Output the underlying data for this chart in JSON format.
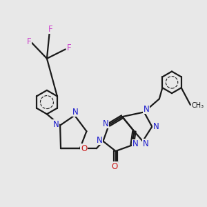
{
  "bg_color": "#e8e8e8",
  "bond_color": "#1a1a1a",
  "N_color": "#1a1acc",
  "O_color": "#cc1a1a",
  "F_color": "#cc44cc",
  "lw": 1.6,
  "fig_w": 3.0,
  "fig_h": 3.0,
  "dpi": 100,
  "xlim": [
    0,
    10
  ],
  "ylim": [
    0,
    10
  ]
}
